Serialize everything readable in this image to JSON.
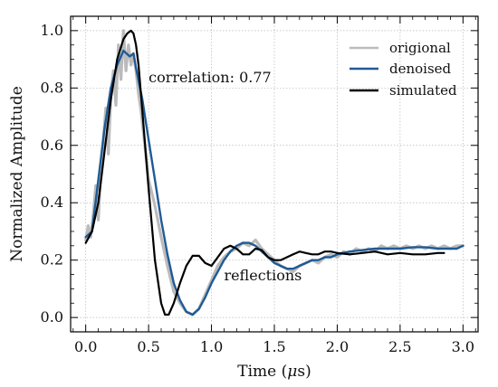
{
  "chart_data": {
    "type": "line",
    "xlabel_text": "Time (",
    "xlabel_mu": "μ",
    "xlabel_unit": "s)",
    "ylabel": "Normalized Amplitude",
    "xlim": [
      -0.12,
      3.12
    ],
    "ylim": [
      -0.05,
      1.05
    ],
    "xticks": [
      0.0,
      0.5,
      1.0,
      1.5,
      2.0,
      2.5,
      3.0
    ],
    "xtick_labels": [
      "0.0",
      "0.5",
      "1.0",
      "1.5",
      "2.0",
      "2.5",
      "3.0"
    ],
    "yticks": [
      0.0,
      0.2,
      0.4,
      0.6,
      0.8,
      1.0
    ],
    "ytick_labels": [
      "0.0",
      "0.2",
      "0.4",
      "0.6",
      "0.8",
      "1.0"
    ],
    "grid": true,
    "grid_style": "dotted",
    "legend_position": "top-right",
    "annotations": [
      {
        "text": "correlation: 0.77",
        "x": 0.5,
        "y": 0.82
      },
      {
        "text": "reflections",
        "x": 1.1,
        "y": 0.13
      }
    ],
    "series": [
      {
        "name": "origional",
        "color": "#bbbbbb",
        "x": [
          0.0,
          0.02,
          0.04,
          0.06,
          0.08,
          0.1,
          0.12,
          0.14,
          0.16,
          0.18,
          0.2,
          0.22,
          0.24,
          0.26,
          0.28,
          0.3,
          0.32,
          0.34,
          0.36,
          0.38,
          0.4,
          0.42,
          0.44,
          0.46,
          0.48,
          0.5,
          0.55,
          0.6,
          0.65,
          0.7,
          0.75,
          0.8,
          0.85,
          0.9,
          0.95,
          1.0,
          1.05,
          1.1,
          1.15,
          1.2,
          1.25,
          1.3,
          1.35,
          1.4,
          1.45,
          1.5,
          1.55,
          1.6,
          1.65,
          1.7,
          1.75,
          1.8,
          1.85,
          1.9,
          1.95,
          2.0,
          2.05,
          2.1,
          2.15,
          2.2,
          2.25,
          2.3,
          2.35,
          2.4,
          2.45,
          2.5,
          2.55,
          2.6,
          2.65,
          2.7,
          2.75,
          2.8,
          2.85,
          2.9,
          2.95,
          3.0
        ],
        "y": [
          0.27,
          0.32,
          0.28,
          0.36,
          0.46,
          0.34,
          0.51,
          0.62,
          0.73,
          0.57,
          0.77,
          0.86,
          0.74,
          0.95,
          0.83,
          1.0,
          0.86,
          0.95,
          0.88,
          0.92,
          0.86,
          0.78,
          0.72,
          0.64,
          0.56,
          0.48,
          0.39,
          0.28,
          0.18,
          0.09,
          0.05,
          0.02,
          0.01,
          0.03,
          0.08,
          0.13,
          0.18,
          0.21,
          0.23,
          0.24,
          0.26,
          0.25,
          0.27,
          0.24,
          0.22,
          0.2,
          0.18,
          0.17,
          0.16,
          0.18,
          0.19,
          0.2,
          0.19,
          0.21,
          0.22,
          0.21,
          0.23,
          0.22,
          0.24,
          0.23,
          0.24,
          0.23,
          0.25,
          0.24,
          0.25,
          0.24,
          0.25,
          0.24,
          0.25,
          0.24,
          0.25,
          0.24,
          0.25,
          0.24,
          0.25,
          0.25
        ]
      },
      {
        "name": "denoised",
        "color": "#1f5a96",
        "x": [
          0.0,
          0.05,
          0.1,
          0.15,
          0.2,
          0.25,
          0.3,
          0.35,
          0.38,
          0.4,
          0.45,
          0.5,
          0.55,
          0.6,
          0.65,
          0.7,
          0.75,
          0.8,
          0.85,
          0.9,
          0.95,
          1.0,
          1.05,
          1.1,
          1.15,
          1.2,
          1.25,
          1.3,
          1.35,
          1.4,
          1.45,
          1.5,
          1.55,
          1.6,
          1.65,
          1.7,
          1.75,
          1.8,
          1.85,
          1.9,
          1.95,
          2.0,
          2.1,
          2.2,
          2.3,
          2.4,
          2.5,
          2.6,
          2.7,
          2.8,
          2.9,
          2.95,
          3.0
        ],
        "y": [
          0.28,
          0.3,
          0.48,
          0.66,
          0.8,
          0.88,
          0.93,
          0.91,
          0.92,
          0.87,
          0.76,
          0.62,
          0.48,
          0.34,
          0.22,
          0.12,
          0.06,
          0.02,
          0.01,
          0.03,
          0.07,
          0.12,
          0.16,
          0.2,
          0.23,
          0.25,
          0.26,
          0.26,
          0.25,
          0.23,
          0.21,
          0.19,
          0.18,
          0.17,
          0.17,
          0.18,
          0.19,
          0.2,
          0.2,
          0.21,
          0.21,
          0.22,
          0.23,
          0.235,
          0.24,
          0.24,
          0.24,
          0.245,
          0.245,
          0.24,
          0.24,
          0.24,
          0.25
        ]
      },
      {
        "name": "simulated",
        "color": "#000000",
        "x": [
          0.0,
          0.05,
          0.1,
          0.15,
          0.2,
          0.25,
          0.3,
          0.33,
          0.36,
          0.38,
          0.4,
          0.42,
          0.45,
          0.5,
          0.55,
          0.6,
          0.63,
          0.66,
          0.7,
          0.75,
          0.8,
          0.85,
          0.9,
          0.95,
          1.0,
          1.05,
          1.1,
          1.15,
          1.2,
          1.25,
          1.3,
          1.35,
          1.4,
          1.45,
          1.5,
          1.55,
          1.6,
          1.65,
          1.7,
          1.75,
          1.8,
          1.85,
          1.9,
          1.95,
          2.0,
          2.1,
          2.2,
          2.3,
          2.4,
          2.5,
          2.6,
          2.7,
          2.8,
          2.85
        ],
        "y": [
          0.26,
          0.3,
          0.4,
          0.58,
          0.76,
          0.9,
          0.97,
          0.99,
          1.0,
          0.99,
          0.95,
          0.88,
          0.72,
          0.45,
          0.2,
          0.05,
          0.01,
          0.01,
          0.05,
          0.12,
          0.18,
          0.215,
          0.215,
          0.19,
          0.18,
          0.21,
          0.24,
          0.25,
          0.24,
          0.22,
          0.22,
          0.24,
          0.235,
          0.21,
          0.2,
          0.2,
          0.21,
          0.22,
          0.23,
          0.225,
          0.22,
          0.22,
          0.23,
          0.23,
          0.225,
          0.22,
          0.225,
          0.23,
          0.22,
          0.225,
          0.22,
          0.22,
          0.225,
          0.225
        ]
      }
    ]
  }
}
